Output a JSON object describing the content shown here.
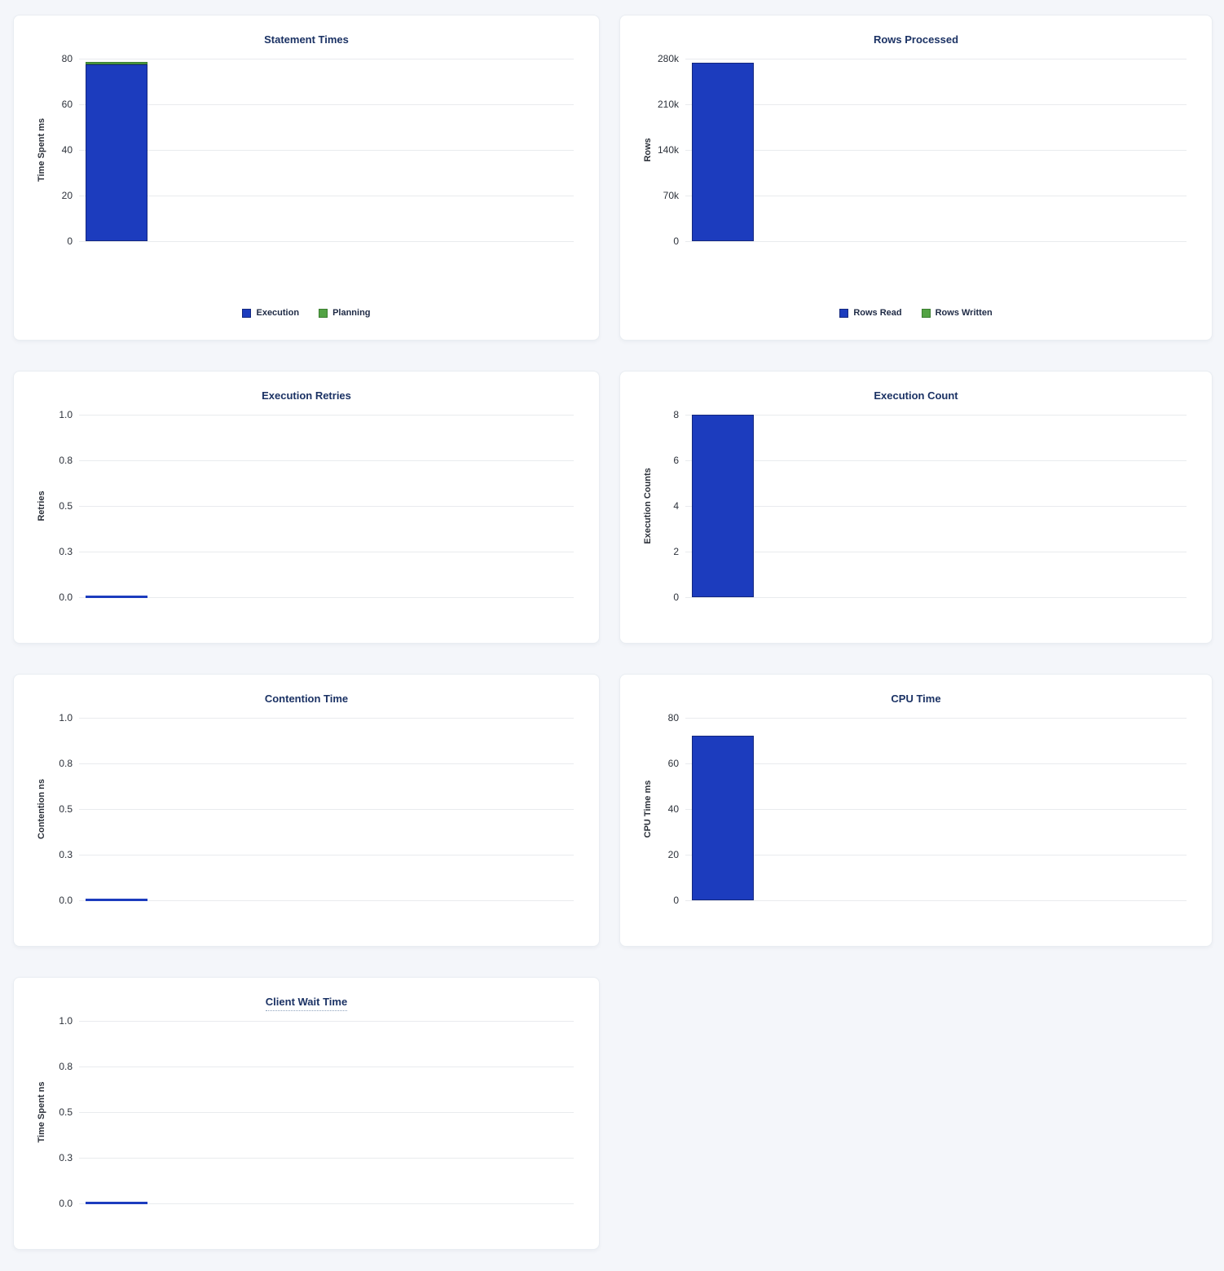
{
  "theme": {
    "page_bg": "#f4f6fa",
    "card_bg": "#ffffff",
    "card_border": "#e9edf2",
    "title_color": "#1b3264",
    "tick_color": "#2c313a",
    "grid_color": "#e9ebee",
    "legend_text": "#1e2a45",
    "bar_blue": "#1c3cbe",
    "bar_blue_border": "#13277f",
    "bar_green": "#53a344",
    "bar_green_border": "#3a7d2f"
  },
  "chart_data": [
    {
      "type": "bar",
      "title": "Statement Times",
      "ylabel": "Time Spent ms",
      "ylim": [
        0,
        80
      ],
      "yticks": [
        "80",
        "60",
        "40",
        "20",
        "0"
      ],
      "grid": true,
      "stacked": true,
      "legend_position": "bottom",
      "show_legend": true,
      "series": [
        {
          "name": "Execution",
          "values": [
            77.5
          ],
          "color": "#1c3cbe",
          "border_color": "#13277f"
        },
        {
          "name": "Planning",
          "values": [
            1.1
          ],
          "color": "#53a344",
          "border_color": "#3a7d2f"
        }
      ]
    },
    {
      "type": "bar",
      "title": "Rows Processed",
      "ylabel": "Rows",
      "ylim": [
        0,
        280000
      ],
      "yticks": [
        "280k",
        "210k",
        "140k",
        "70k",
        "0"
      ],
      "grid": true,
      "stacked": true,
      "legend_position": "bottom",
      "show_legend": true,
      "series": [
        {
          "name": "Rows Read",
          "values": [
            274000
          ],
          "color": "#1c3cbe",
          "border_color": "#13277f"
        },
        {
          "name": "Rows Written",
          "values": [
            0
          ],
          "color": "#53a344",
          "border_color": "#3a7d2f"
        }
      ]
    },
    {
      "type": "bar",
      "title": "Execution Retries",
      "ylabel": "Retries",
      "ylim": [
        0,
        1
      ],
      "yticks": [
        "1.0",
        "0.8",
        "0.5",
        "0.3",
        "0.0"
      ],
      "grid": true,
      "stacked": false,
      "show_legend": false,
      "series": [
        {
          "name": "Retries",
          "values": [
            0
          ],
          "color": "#1c3cbe",
          "border_color": "#13277f"
        }
      ]
    },
    {
      "type": "bar",
      "title": "Execution Count",
      "ylabel": "Execution Counts",
      "ylim": [
        0,
        8
      ],
      "yticks": [
        "8",
        "6",
        "4",
        "2",
        "0"
      ],
      "grid": true,
      "stacked": false,
      "show_legend": false,
      "series": [
        {
          "name": "Execution Count",
          "values": [
            8
          ],
          "color": "#1c3cbe",
          "border_color": "#13277f"
        }
      ]
    },
    {
      "type": "bar",
      "title": "Contention Time",
      "ylabel": "Contention ns",
      "ylim": [
        0,
        1
      ],
      "yticks": [
        "1.0",
        "0.8",
        "0.5",
        "0.3",
        "0.0"
      ],
      "grid": true,
      "stacked": false,
      "show_legend": false,
      "series": [
        {
          "name": "Contention",
          "values": [
            0
          ],
          "color": "#1c3cbe",
          "border_color": "#13277f"
        }
      ]
    },
    {
      "type": "bar",
      "title": "CPU Time",
      "ylabel": "CPU Time ms",
      "ylim": [
        0,
        80
      ],
      "yticks": [
        "80",
        "60",
        "40",
        "20",
        "0"
      ],
      "grid": true,
      "stacked": false,
      "show_legend": false,
      "series": [
        {
          "name": "CPU Time",
          "values": [
            72
          ],
          "color": "#1c3cbe",
          "border_color": "#13277f"
        }
      ]
    },
    {
      "type": "bar",
      "title": "Client Wait Time",
      "title_underlined": true,
      "ylabel": "Time Spent ns",
      "ylim": [
        0,
        1
      ],
      "yticks": [
        "1.0",
        "0.8",
        "0.5",
        "0.3",
        "0.0"
      ],
      "grid": true,
      "stacked": false,
      "show_legend": false,
      "series": [
        {
          "name": "Client Wait",
          "values": [
            0
          ],
          "color": "#1c3cbe",
          "border_color": "#13277f"
        }
      ]
    }
  ]
}
